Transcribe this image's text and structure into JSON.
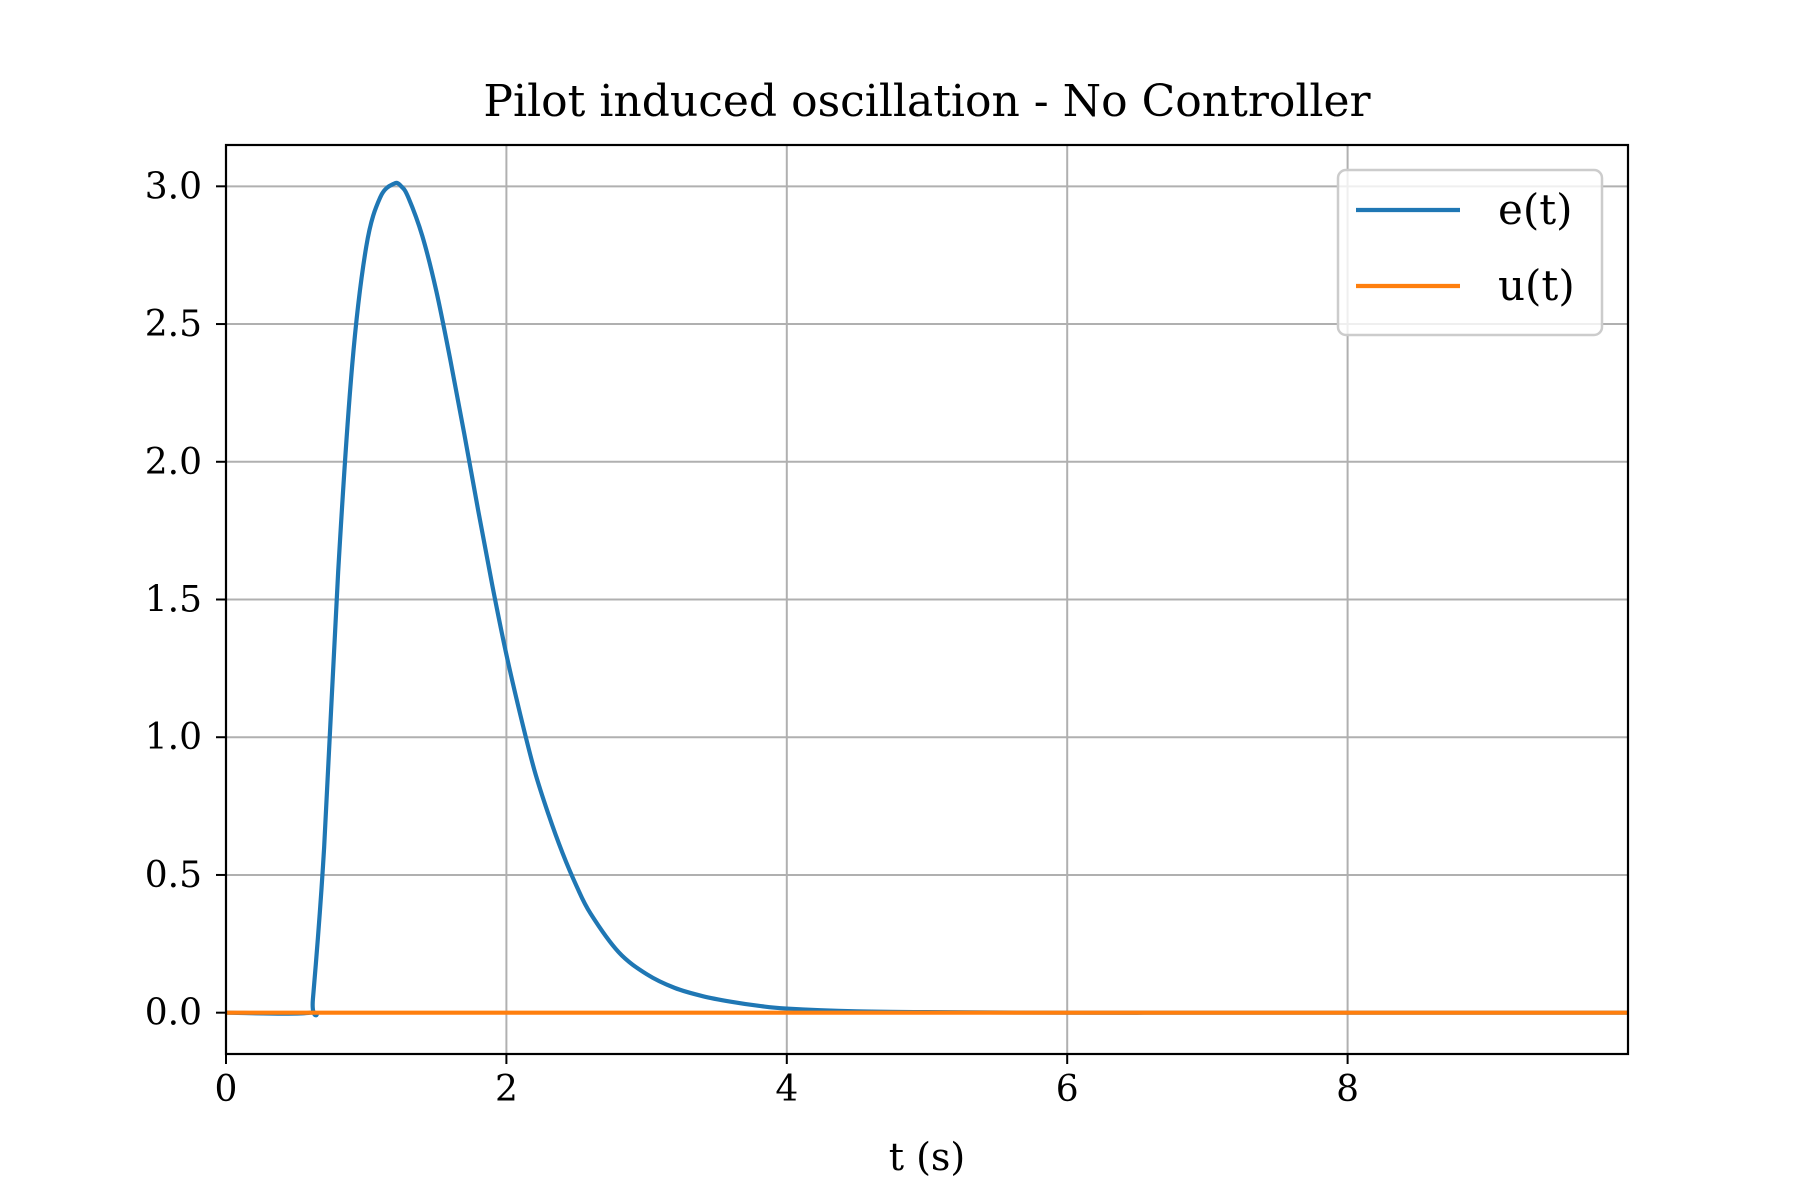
{
  "chart_data": {
    "type": "line",
    "title": "Pilot induced oscillation - No Controller",
    "xlabel": "t (s)",
    "ylabel": "",
    "xlim": [
      0,
      10
    ],
    "ylim": [
      -0.15,
      3.15
    ],
    "x_ticks": [
      0,
      2,
      4,
      6,
      8
    ],
    "x_tick_labels": [
      "0",
      "2",
      "4",
      "6",
      "8"
    ],
    "y_ticks": [
      0.0,
      0.5,
      1.0,
      1.5,
      2.0,
      2.5,
      3.0
    ],
    "y_tick_labels": [
      "0.0",
      "0.5",
      "1.0",
      "1.5",
      "2.0",
      "2.5",
      "3.0"
    ],
    "grid": true,
    "legend_position": "top-right",
    "series": [
      {
        "name": "e(t)",
        "color": "#1f77b4",
        "x": [
          0,
          0.6,
          0.62,
          0.7,
          0.8,
          0.9,
          1.0,
          1.1,
          1.2,
          1.25,
          1.3,
          1.4,
          1.5,
          1.6,
          1.7,
          1.8,
          1.9,
          2.0,
          2.1,
          2.2,
          2.3,
          2.4,
          2.5,
          2.6,
          2.8,
          3.0,
          3.2,
          3.4,
          3.6,
          3.8,
          4.0,
          4.5,
          5.0,
          6.0,
          7.0,
          8.0,
          9.0,
          10.0
        ],
        "y": [
          0.0,
          0.0,
          0.05,
          0.6,
          1.6,
          2.35,
          2.78,
          2.96,
          3.01,
          3.0,
          2.96,
          2.82,
          2.62,
          2.37,
          2.1,
          1.82,
          1.55,
          1.3,
          1.08,
          0.88,
          0.72,
          0.58,
          0.46,
          0.36,
          0.22,
          0.14,
          0.09,
          0.06,
          0.04,
          0.025,
          0.015,
          0.005,
          0.002,
          0.0,
          0.0,
          0.0,
          0.0,
          0.0
        ]
      },
      {
        "name": "u(t)",
        "color": "#ff7f0e",
        "x": [
          0,
          10
        ],
        "y": [
          0.0,
          0.0
        ]
      }
    ]
  }
}
